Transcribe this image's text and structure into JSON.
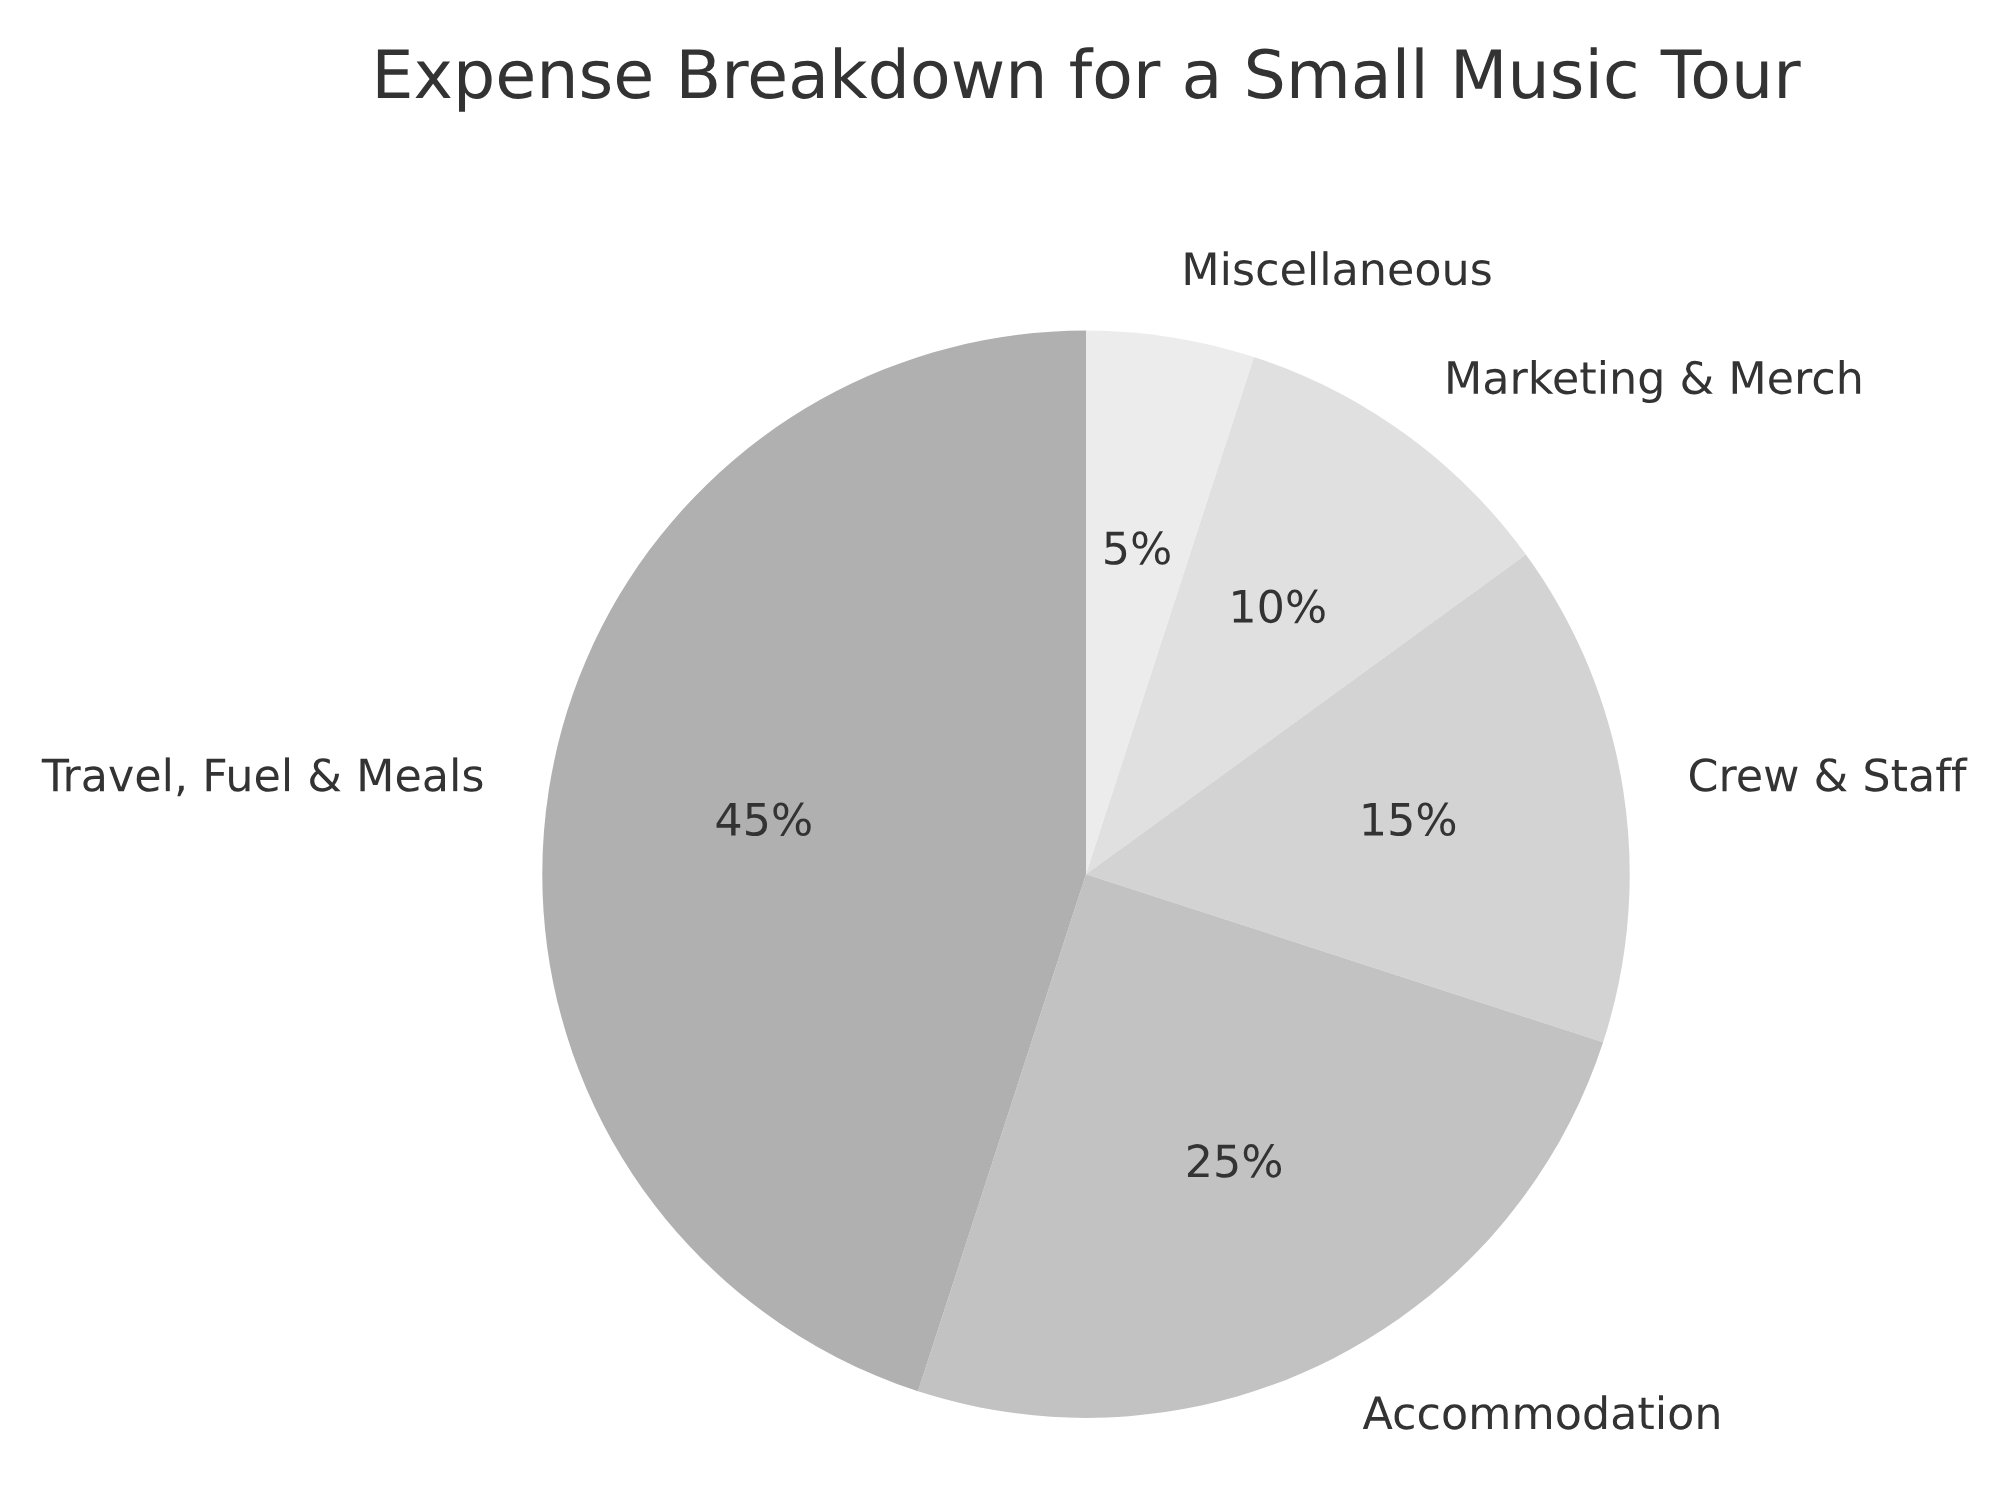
{
  "chart_data": {
    "type": "pie",
    "title": "Expense Breakdown for a Small Music Tour",
    "categories": [
      "Miscellaneous",
      "Marketing & Merch",
      "Crew & Staff",
      "Accommodation",
      "Travel, Fuel & Meals"
    ],
    "values": [
      5,
      10,
      15,
      25,
      45
    ],
    "value_labels": [
      "5%",
      "10%",
      "15%",
      "25%",
      "45%"
    ],
    "colors": [
      "#ececec",
      "#e0e0e0",
      "#d3d3d3",
      "#c2c2c2",
      "#b0b0b0"
    ]
  }
}
